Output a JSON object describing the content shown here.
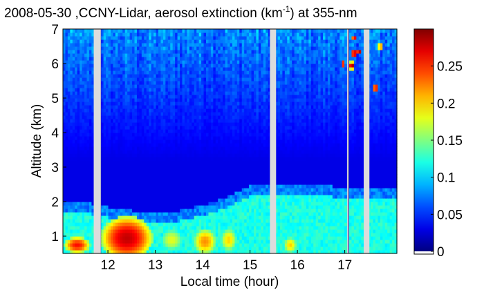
{
  "chart_data": {
    "type": "heatmap",
    "title": {
      "prefix": "2008-05-30 ,CCNY-Lidar, aerosol extinction (km",
      "superscript": "-1",
      "suffix": ") at 355-nm"
    },
    "xlabel": "Local time (hour)",
    "ylabel": "Altitude (km)",
    "xlim": [
      11.05,
      18.1
    ],
    "ylim": [
      0.5,
      7.0
    ],
    "x_ticks": [
      {
        "value": 12,
        "label": "12"
      },
      {
        "value": 13,
        "label": "13"
      },
      {
        "value": 14,
        "label": "14"
      },
      {
        "value": 15,
        "label": "15"
      },
      {
        "value": 16,
        "label": "16"
      },
      {
        "value": 17,
        "label": "17"
      }
    ],
    "y_ticks": [
      {
        "value": 1,
        "label": "1"
      },
      {
        "value": 2,
        "label": "2"
      },
      {
        "value": 3,
        "label": "3"
      },
      {
        "value": 4,
        "label": "4"
      },
      {
        "value": 5,
        "label": "5"
      },
      {
        "value": 6,
        "label": "6"
      },
      {
        "value": 7,
        "label": "7"
      }
    ],
    "colorbar": {
      "colormap": "jet",
      "clim": [
        0,
        0.3
      ],
      "ticks": [
        {
          "value": 0,
          "label": "0"
        },
        {
          "value": 0.05,
          "label": "0.05"
        },
        {
          "value": 0.1,
          "label": "0.1"
        },
        {
          "value": 0.15,
          "label": "0.15"
        },
        {
          "value": 0.2,
          "label": "0.2"
        },
        {
          "value": 0.25,
          "label": "0.25"
        }
      ]
    },
    "data_gaps_hours": [
      [
        11.7,
        11.85
      ],
      [
        15.42,
        15.55
      ],
      [
        17.05,
        17.08
      ],
      [
        17.4,
        17.52
      ]
    ],
    "gap_color": "#dcdcdc",
    "boundary_layer_top_km": [
      {
        "x": 11.05,
        "y": 1.9
      },
      {
        "x": 11.5,
        "y": 1.85
      },
      {
        "x": 12.0,
        "y": 1.7
      },
      {
        "x": 12.5,
        "y": 1.6
      },
      {
        "x": 13.0,
        "y": 1.55
      },
      {
        "x": 13.5,
        "y": 1.6
      },
      {
        "x": 14.0,
        "y": 1.75
      },
      {
        "x": 14.5,
        "y": 2.0
      },
      {
        "x": 15.0,
        "y": 2.3
      },
      {
        "x": 15.4,
        "y": 2.35
      },
      {
        "x": 16.0,
        "y": 2.35
      },
      {
        "x": 16.5,
        "y": 2.35
      },
      {
        "x": 17.0,
        "y": 2.25
      },
      {
        "x": 17.5,
        "y": 2.2
      },
      {
        "x": 18.1,
        "y": 2.25
      }
    ],
    "high_extinction_cores": [
      {
        "x": 11.35,
        "y": 0.75,
        "dx": 0.28,
        "dy": 0.25,
        "value": 0.26
      },
      {
        "x": 12.4,
        "y": 0.95,
        "dx": 0.55,
        "dy": 0.65,
        "value": 0.28
      },
      {
        "x": 13.35,
        "y": 0.9,
        "dx": 0.25,
        "dy": 0.35,
        "value": 0.18
      },
      {
        "x": 14.05,
        "y": 0.85,
        "dx": 0.25,
        "dy": 0.4,
        "value": 0.22
      },
      {
        "x": 14.55,
        "y": 0.9,
        "dx": 0.18,
        "dy": 0.35,
        "value": 0.2
      },
      {
        "x": 15.85,
        "y": 0.75,
        "dx": 0.15,
        "dy": 0.25,
        "value": 0.2
      }
    ],
    "cloud_patches": [
      {
        "x": 16.97,
        "y": 6.0,
        "dx": 0.05,
        "dy": 0.1,
        "value": 0.28
      },
      {
        "x": 17.2,
        "y": 6.3,
        "dx": 0.07,
        "dy": 0.12,
        "value": 0.3
      },
      {
        "x": 17.15,
        "y": 5.95,
        "dx": 0.06,
        "dy": 0.12,
        "value": 0.3
      },
      {
        "x": 17.3,
        "y": 6.35,
        "dx": 0.05,
        "dy": 0.1,
        "value": 0.3
      },
      {
        "x": 17.2,
        "y": 6.75,
        "dx": 0.05,
        "dy": 0.1,
        "value": 0.28
      },
      {
        "x": 17.65,
        "y": 5.3,
        "dx": 0.05,
        "dy": 0.12,
        "value": 0.3
      },
      {
        "x": 17.75,
        "y": 6.5,
        "dx": 0.04,
        "dy": 0.1,
        "value": 0.28
      }
    ],
    "grid": false
  }
}
